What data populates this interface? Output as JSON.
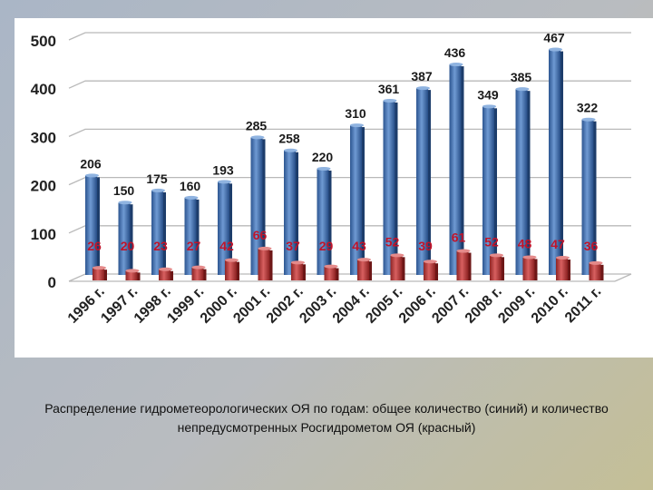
{
  "caption": "Распределение гидрометеорологических ОЯ по годам: общее количество (синий) и количество непредусмотренных Росгидрометом ОЯ (красный)",
  "chart_data": {
    "type": "bar",
    "title": "",
    "xlabel": "",
    "ylabel": "",
    "ylim": [
      0,
      500
    ],
    "yticks": [
      0,
      100,
      200,
      300,
      400,
      500
    ],
    "grid": true,
    "legend": "none",
    "categories": [
      "1996 г.",
      "1997 г.",
      "1998 г.",
      "1999 г.",
      "2000 г.",
      "2001 г.",
      "2002 г.",
      "2003 г.",
      "2004 г.",
      "2005 г.",
      "2006 г.",
      "2007 г.",
      "2008 г.",
      "2009 г.",
      "2010 г.",
      "2011 г."
    ],
    "series": [
      {
        "color": "#3a6aa8",
        "label_color": "#1a1a1a",
        "values": [
          206,
          150,
          175,
          160,
          193,
          285,
          258,
          220,
          310,
          361,
          387,
          436,
          349,
          385,
          467,
          322
        ]
      },
      {
        "color": "#b83a3a",
        "label_color": "#c0142a",
        "values": [
          26,
          20,
          23,
          27,
          42,
          66,
          37,
          29,
          43,
          52,
          39,
          61,
          52,
          48,
          47,
          36
        ]
      }
    ]
  }
}
